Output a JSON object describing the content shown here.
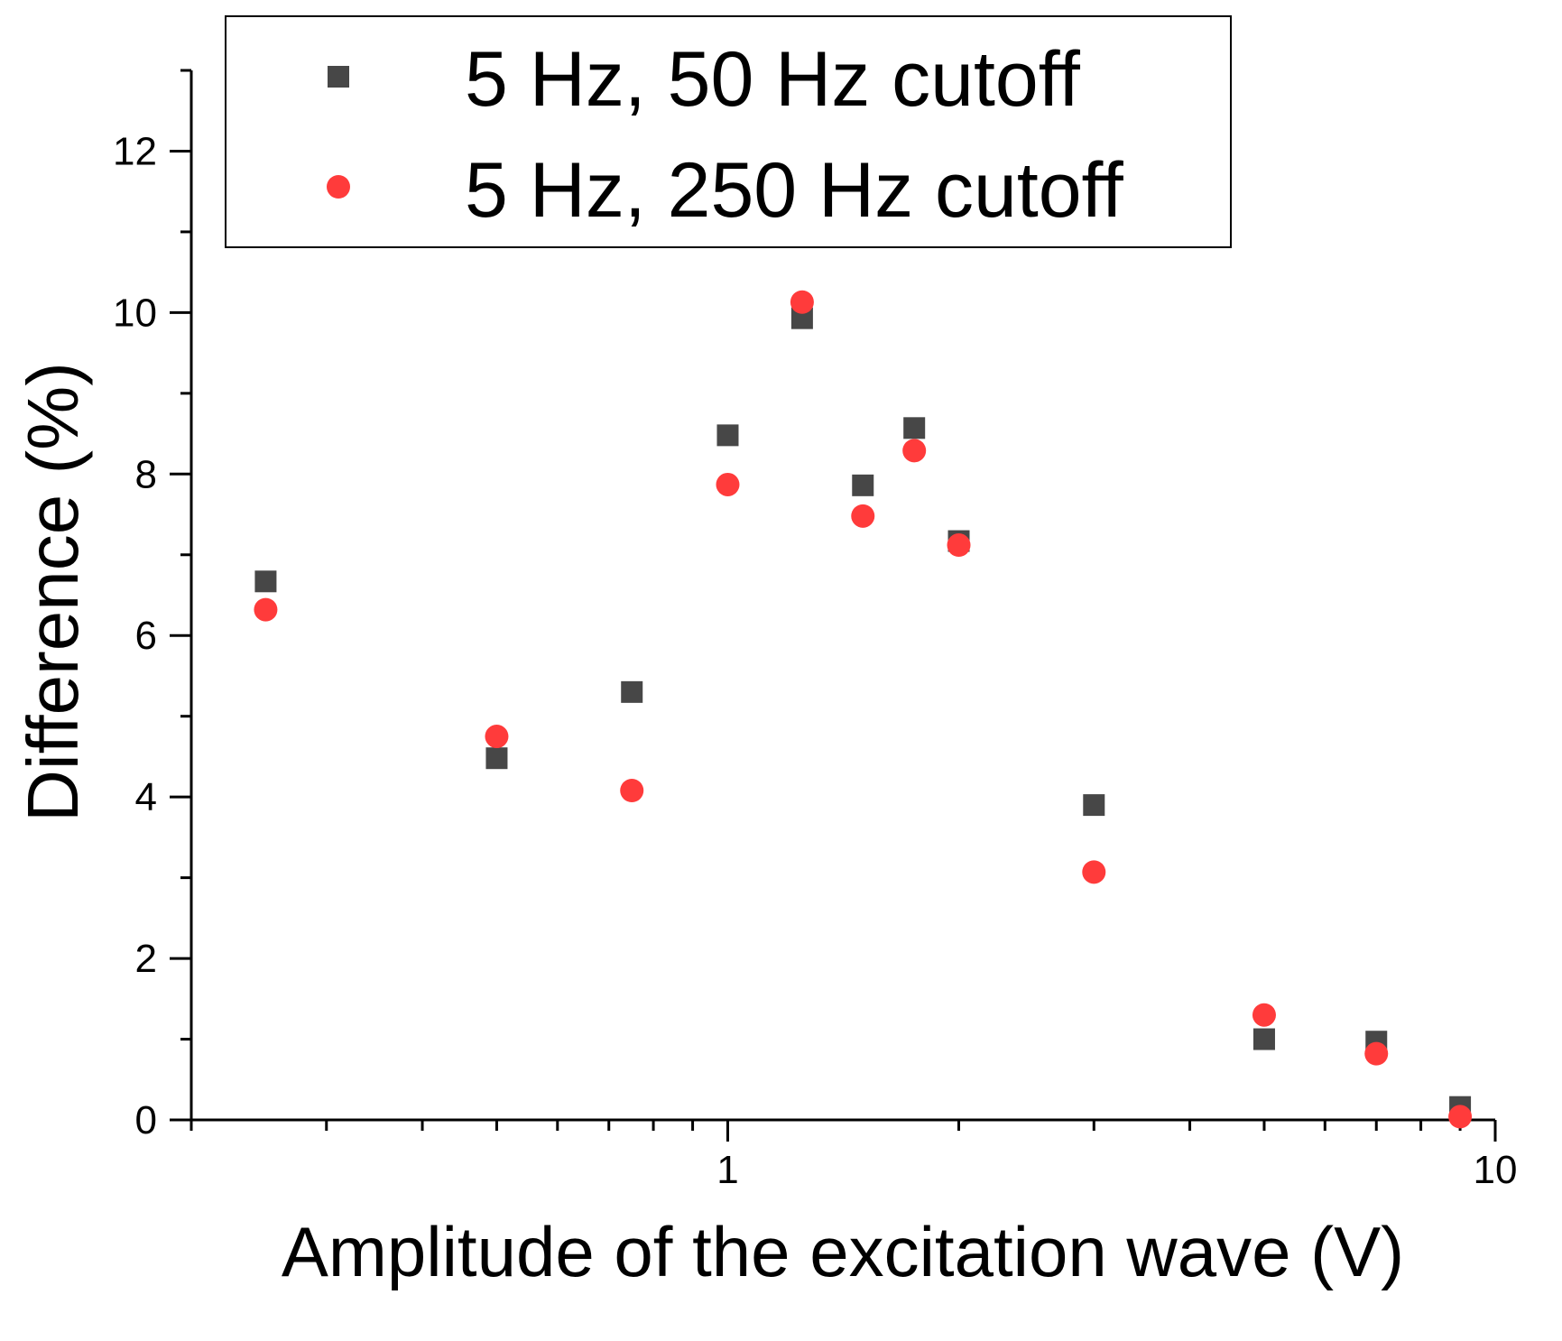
{
  "chart_data": {
    "type": "scatter",
    "title": "",
    "xlabel": "Amplitude of the excitation wave (V)",
    "ylabel": "Difference (%)",
    "xscale": "log",
    "xlim": [
      0.2,
      10
    ],
    "ylim": [
      0,
      13
    ],
    "x_ticks": [
      {
        "value": 1,
        "label": "1"
      },
      {
        "value": 10,
        "label": "10"
      }
    ],
    "y_ticks": [
      {
        "value": 0,
        "label": "0"
      },
      {
        "value": 2,
        "label": "2"
      },
      {
        "value": 4,
        "label": "4"
      },
      {
        "value": 6,
        "label": "6"
      },
      {
        "value": 8,
        "label": "8"
      },
      {
        "value": 10,
        "label": "10"
      },
      {
        "value": 12,
        "label": "12"
      }
    ],
    "legend_position": "top",
    "series": [
      {
        "name": "5 Hz, 50 Hz cutoff",
        "marker": "square",
        "color": "#474747",
        "x": [
          0.25,
          0.5,
          0.75,
          1.0,
          1.25,
          1.5,
          1.75,
          2.0,
          3.0,
          5.0,
          7.0,
          9.0
        ],
        "y": [
          6.67,
          4.48,
          5.3,
          8.48,
          9.93,
          7.86,
          8.57,
          7.17,
          3.9,
          1.0,
          0.97,
          0.16
        ]
      },
      {
        "name": "5 Hz, 250 Hz cutoff",
        "marker": "circle",
        "color": "#ff3b3b",
        "x": [
          0.25,
          0.5,
          0.75,
          1.0,
          1.25,
          1.5,
          1.75,
          2.0,
          3.0,
          5.0,
          7.0,
          9.0
        ],
        "y": [
          6.32,
          4.75,
          4.08,
          7.87,
          10.13,
          7.48,
          8.29,
          7.12,
          3.07,
          1.3,
          0.82,
          0.04
        ]
      }
    ]
  }
}
